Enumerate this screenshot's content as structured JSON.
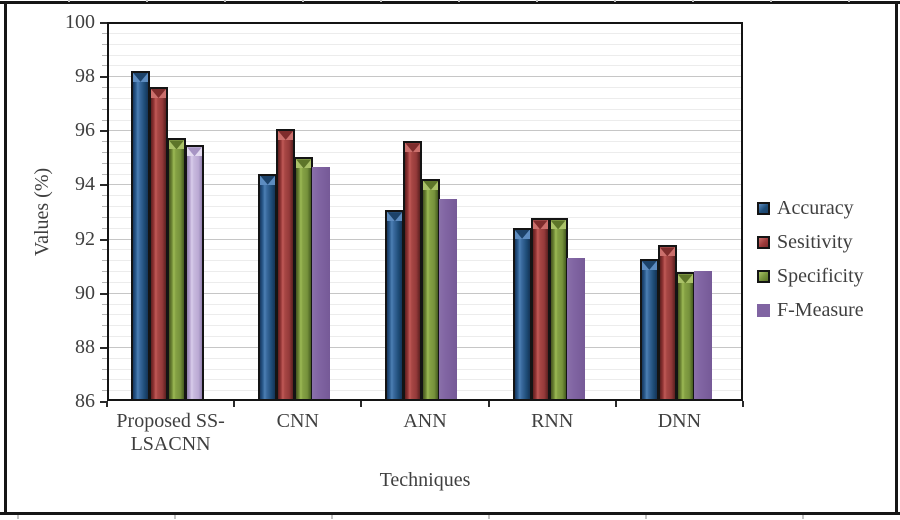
{
  "figure": {
    "frame_color": "#161616",
    "background": "#ffffff"
  },
  "chart_data": {
    "type": "bar",
    "title": "",
    "xlabel": "Techniques",
    "ylabel": "Values (%)",
    "ylim": [
      86,
      100
    ],
    "y_major_step": 2,
    "y_minor_step": 0.4,
    "grid": true,
    "legend_position": "right",
    "y_tick_labels": [
      "100",
      "98",
      "96",
      "94",
      "92",
      "90",
      "88",
      "86"
    ],
    "categories": [
      "Proposed SS-\nLSACNN",
      "CNN",
      "ANN",
      "RNN",
      "DNN"
    ],
    "series": [
      {
        "name": "Accuracy",
        "color": "#1F4E79",
        "values": [
          98.2,
          94.4,
          93.05,
          92.4,
          91.25
        ]
      },
      {
        "name": "Sesitivity",
        "color": "#9E3B3B",
        "values": [
          97.6,
          96.05,
          95.6,
          92.75,
          91.75
        ]
      },
      {
        "name": "Specificity",
        "color": "#76923C",
        "values": [
          95.7,
          95.0,
          94.2,
          92.75,
          90.75
        ]
      },
      {
        "name": "F-Measure",
        "color": "#8064A2",
        "values": [
          95.45,
          94.65,
          93.45,
          91.3,
          90.8
        ]
      }
    ],
    "special_colors": {
      "f_measure_first_group": "#C0B0D8",
      "bar_outline": "#141414"
    }
  }
}
